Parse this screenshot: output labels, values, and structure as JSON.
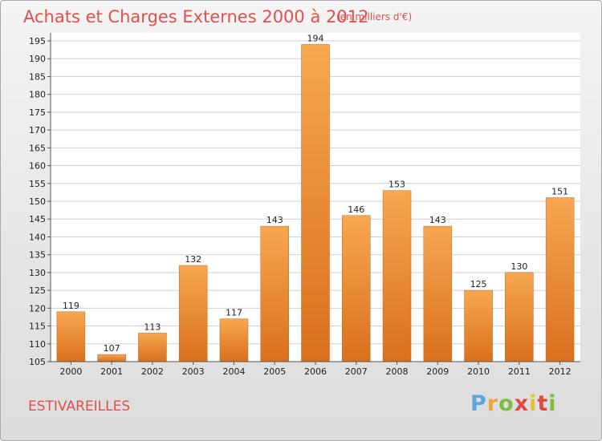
{
  "header": {
    "title": "Achats et Charges Externes 2000 à 2012",
    "unit": "(en milliers d'€)"
  },
  "footer": {
    "commune": "ESTIVAREILLES",
    "logo": [
      "P",
      "r",
      "o",
      "x",
      "i",
      "t",
      "i"
    ],
    "logo_colors": [
      "#5aa5e0",
      "#f2a33a",
      "#7bbf3c",
      "#e2483d",
      "#e2c233",
      "#e2483d",
      "#7bbf3c"
    ]
  },
  "colors": {
    "bar_light": "#f7a751",
    "bar_dark": "#d9701e",
    "grid": "#d0d0d0",
    "accent": "#e0504d"
  },
  "chart_data": {
    "type": "bar",
    "title": "Achats et Charges Externes 2000 à 2012",
    "xlabel": "",
    "ylabel": "",
    "categories": [
      "2000",
      "2001",
      "2002",
      "2003",
      "2004",
      "2005",
      "2006",
      "2007",
      "2008",
      "2009",
      "2010",
      "2011",
      "2012"
    ],
    "values": [
      119,
      107,
      113,
      132,
      117,
      143,
      194,
      146,
      153,
      143,
      125,
      130,
      151
    ],
    "ylim": [
      105,
      195
    ],
    "yticks": [
      105,
      110,
      115,
      120,
      125,
      130,
      135,
      140,
      145,
      150,
      155,
      160,
      165,
      170,
      175,
      180,
      185,
      190,
      195
    ],
    "grid": true
  }
}
